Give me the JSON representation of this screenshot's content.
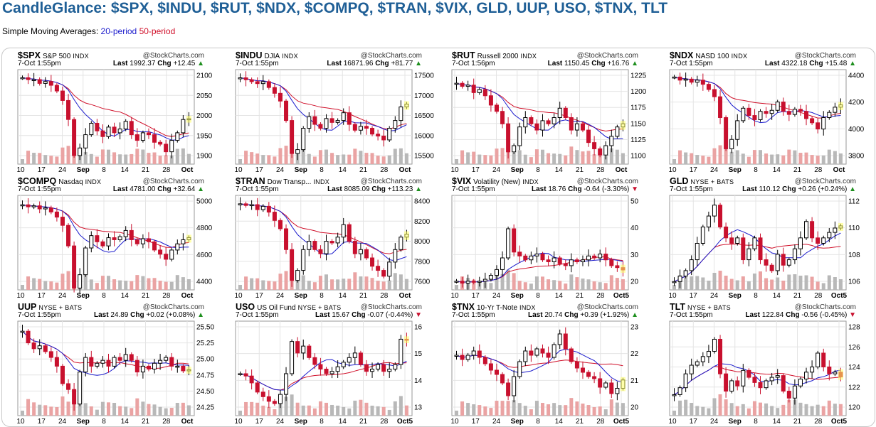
{
  "header": {
    "title": "CandleGlance: $SPX, $INDU, $RUT, $NDX, $COMPQ, $TRAN, $VIX, GLD, UUP, USO, $TNX, TLT",
    "sma_prefix": "Simple Moving Averages: ",
    "sma20_label": "20-period",
    "sma50_label": "50-period"
  },
  "colors": {
    "title": "#1f5f96",
    "up": "#000000",
    "down": "#c8102e",
    "sma20": "#1b1bcc",
    "sma50": "#d0102a",
    "vol_up": "#b8b8b8",
    "vol_down": "#eaa3a3",
    "highlight": "#ffff66"
  },
  "charts": [
    {
      "symbol": "$SPX",
      "name": "S&P 500",
      "exchange": "INDX",
      "source": "@StockCharts.com",
      "timestamp": "7-Oct 1:55pm",
      "last_label": "Last",
      "last": "1992.37",
      "chg_label": "Chg",
      "chg": "+12.45",
      "dir": "up",
      "x_ticks": [
        "10",
        "17",
        "24",
        "Sep",
        "8",
        "14",
        "21",
        "28",
        "Oct"
      ],
      "y_ticks": [
        "2100",
        "2050",
        "2000",
        "1950",
        "1900"
      ]
    },
    {
      "symbol": "$INDU",
      "name": "DJIA",
      "exchange": "INDX",
      "source": "@StockCharts.com",
      "timestamp": "7-Oct 1:55pm",
      "last_label": "Last",
      "last": "16871.96",
      "chg_label": "Chg",
      "chg": "+81.77",
      "dir": "up",
      "x_ticks": [
        "10",
        "17",
        "24",
        "Sep",
        "8",
        "14",
        "21",
        "28",
        "Oct"
      ],
      "y_ticks": [
        "17500",
        "17000",
        "16500",
        "16000",
        "15500"
      ]
    },
    {
      "symbol": "$RUT",
      "name": "Russell 2000",
      "exchange": "INDX",
      "source": "@StockCharts.com",
      "timestamp": "7-Oct 1:56pm",
      "last_label": "Last",
      "last": "1150.45",
      "chg_label": "Chg",
      "chg": "+16.76",
      "dir": "up",
      "x_ticks": [
        "10",
        "17",
        "24",
        "Sep",
        "8",
        "14",
        "21",
        "28",
        "Oct"
      ],
      "y_ticks": [
        "1225",
        "1200",
        "1175",
        "1150",
        "1125",
        "1100"
      ]
    },
    {
      "symbol": "$NDX",
      "name": "NASD 100",
      "exchange": "INDX",
      "source": "@StockCharts.com",
      "timestamp": "7-Oct 1:55pm",
      "last_label": "Last",
      "last": "4322.18",
      "chg_label": "Chg",
      "chg": "+15.48",
      "dir": "up",
      "x_ticks": [
        "10",
        "17",
        "24",
        "Sep",
        "8",
        "14",
        "21",
        "28",
        "Oct"
      ],
      "y_ticks": [
        "4400",
        "4200",
        "4000",
        "3800"
      ]
    },
    {
      "symbol": "$COMPQ",
      "name": "Nasdaq",
      "exchange": "INDX",
      "source": "@StockCharts.com",
      "timestamp": "7-Oct 1:55pm",
      "last_label": "Last",
      "last": "4781.00",
      "chg_label": "Chg",
      "chg": "+32.64",
      "dir": "up",
      "x_ticks": [
        "10",
        "17",
        "24",
        "Sep",
        "8",
        "14",
        "21",
        "28",
        "Oct"
      ],
      "y_ticks": [
        "5000",
        "4800",
        "4600",
        "4400"
      ]
    },
    {
      "symbol": "$TRAN",
      "name": "Dow Transp...",
      "exchange": "INDX",
      "source": "@StockCharts.com",
      "timestamp": "7-Oct 1:55pm",
      "last_label": "Last",
      "last": "8085.09",
      "chg_label": "Chg",
      "chg": "+113.23",
      "dir": "up",
      "x_ticks": [
        "10",
        "17",
        "24",
        "Sep",
        "8",
        "14",
        "21",
        "28",
        "Oct"
      ],
      "y_ticks": [
        "8400",
        "8200",
        "8000",
        "7800",
        "7600"
      ]
    },
    {
      "symbol": "$VIX",
      "name": "Volatility (New)",
      "exchange": "INDX",
      "source": "@StockCharts.com",
      "timestamp": "7-Oct 1:55pm",
      "last_label": "Last",
      "last": "18.76",
      "chg_label": "Chg",
      "chg": "-0.64 (-3.30%)",
      "dir": "down",
      "x_ticks": [
        "10",
        "17",
        "24",
        "Sep",
        "8",
        "14",
        "21",
        "28",
        "Oct5"
      ],
      "y_ticks": [
        "50",
        "40",
        "30",
        "20"
      ]
    },
    {
      "symbol": "GLD",
      "name": "",
      "exchange": "NYSE + BATS",
      "source": "@StockCharts.com",
      "timestamp": "7-Oct 1:55pm",
      "last_label": "Last",
      "last": "110.12",
      "chg_label": "Chg",
      "chg": "+0.26 (+0.24%)",
      "dir": "up",
      "x_ticks": [
        "10",
        "17",
        "24",
        "Sep",
        "8",
        "14",
        "21",
        "28",
        "Oct5"
      ],
      "y_ticks": [
        "112",
        "110",
        "108",
        "106"
      ]
    },
    {
      "symbol": "UUP",
      "name": "",
      "exchange": "NYSE + BATS",
      "source": "@StockCharts.com",
      "timestamp": "7-Oct 1:55pm",
      "last_label": "Last",
      "last": "24.89",
      "chg_label": "Chg",
      "chg": "+0.02 (+0.08%)",
      "dir": "up",
      "x_ticks": [
        "10",
        "17",
        "24",
        "Sep",
        "8",
        "14",
        "21",
        "28",
        "Oct"
      ],
      "y_ticks": [
        "25.50",
        "25.25",
        "25.00",
        "24.75",
        "24.50",
        "24.25"
      ]
    },
    {
      "symbol": "USO",
      "name": "US Oil Fund",
      "exchange": "NYSE + BATS",
      "source": "@StockCharts.com",
      "timestamp": "7-Oct 1:55pm",
      "last_label": "Last",
      "last": "15.67",
      "chg_label": "Chg",
      "chg": "-0.07 (-0.44%)",
      "dir": "down",
      "x_ticks": [
        "10",
        "17",
        "24",
        "Sep",
        "8",
        "14",
        "21",
        "28",
        "Oct5"
      ],
      "y_ticks": [
        "16",
        "15",
        "14",
        "13"
      ]
    },
    {
      "symbol": "$TNX",
      "name": "10-Yr T-Note",
      "exchange": "INDX",
      "source": "@StockCharts.com",
      "timestamp": "7-Oct 1:55pm",
      "last_label": "Last",
      "last": "20.74",
      "chg_label": "Chg",
      "chg": "+0.39 (+1.92%)",
      "dir": "up",
      "x_ticks": [
        "10",
        "17",
        "24",
        "Sep",
        "8",
        "14",
        "21",
        "28",
        "Oct5"
      ],
      "y_ticks": [
        "23",
        "22",
        "21",
        "20"
      ]
    },
    {
      "symbol": "TLT",
      "name": "",
      "exchange": "NYSE + BATS",
      "source": "@StockCharts.com",
      "timestamp": "7-Oct 1:55pm",
      "last_label": "Last",
      "last": "122.84",
      "chg_label": "Chg",
      "chg": "-0.56 (-0.45%)",
      "dir": "down",
      "x_ticks": [
        "10",
        "17",
        "24",
        "Sep",
        "8",
        "14",
        "21",
        "28",
        "Oct5"
      ],
      "y_ticks": [
        "128",
        "126",
        "124",
        "122",
        "120"
      ]
    }
  ],
  "chart_data": [
    {
      "type": "line",
      "title": "$SPX",
      "series": [
        {
          "name": "Last",
          "values": [
            2100,
            2095,
            2095,
            2085,
            2090,
            2080,
            2065,
            2040,
            1990,
            1895,
            1915,
            1950,
            1980,
            1960,
            1945,
            1970,
            1955,
            1965,
            1985,
            1950,
            1935,
            1955,
            1950,
            1930,
            1925,
            1905,
            1935,
            1955,
            1990,
            1992
          ]
        }
      ],
      "ylim": [
        1880,
        2110
      ]
    },
    {
      "type": "line",
      "title": "$INDU",
      "series": [
        {
          "name": "Last",
          "values": [
            17550,
            17500,
            17450,
            17400,
            17450,
            17300,
            17150,
            16950,
            16450,
            15600,
            15700,
            16250,
            16550,
            16350,
            16250,
            16500,
            16400,
            16450,
            16650,
            16350,
            16200,
            16300,
            16250,
            16100,
            16050,
            15950,
            16250,
            16450,
            16800,
            16872
          ]
        }
      ],
      "ylim": [
        15400,
        17650
      ]
    },
    {
      "type": "line",
      "title": "$RUT",
      "series": [
        {
          "name": "Last",
          "values": [
            1215,
            1210,
            1212,
            1200,
            1205,
            1195,
            1180,
            1170,
            1150,
            1105,
            1115,
            1145,
            1160,
            1150,
            1140,
            1155,
            1150,
            1160,
            1175,
            1160,
            1140,
            1150,
            1140,
            1120,
            1110,
            1100,
            1115,
            1130,
            1145,
            1150
          ]
        }
      ],
      "ylim": [
        1090,
        1230
      ]
    },
    {
      "type": "line",
      "title": "$NDX",
      "series": [
        {
          "name": "Last",
          "values": [
            4590,
            4560,
            4570,
            4540,
            4560,
            4520,
            4470,
            4400,
            4200,
            3900,
            3990,
            4170,
            4290,
            4220,
            4180,
            4260,
            4240,
            4270,
            4350,
            4260,
            4230,
            4280,
            4260,
            4190,
            4150,
            4090,
            4200,
            4250,
            4300,
            4322
          ]
        }
      ],
      "ylim": [
        3780,
        4620
      ]
    },
    {
      "type": "line",
      "title": "$COMPQ",
      "series": [
        {
          "name": "Last",
          "values": [
            5100,
            5080,
            5090,
            5060,
            5070,
            5030,
            4980,
            4900,
            4700,
            4290,
            4420,
            4680,
            4800,
            4740,
            4700,
            4780,
            4760,
            4790,
            4850,
            4760,
            4720,
            4770,
            4740,
            4660,
            4620,
            4570,
            4660,
            4720,
            4760,
            4781
          ]
        }
      ],
      "ylim": [
        4300,
        5150
      ]
    },
    {
      "type": "line",
      "title": "$TRAN",
      "series": [
        {
          "name": "Last",
          "values": [
            8450,
            8430,
            8440,
            8380,
            8420,
            8350,
            8250,
            8150,
            7900,
            7530,
            7650,
            7900,
            8000,
            7900,
            7850,
            8000,
            7980,
            8050,
            8200,
            8000,
            7850,
            7900,
            7800,
            7700,
            7650,
            7580,
            7750,
            7900,
            8050,
            8085
          ]
        }
      ],
      "ylim": [
        7450,
        8500
      ]
    },
    {
      "type": "line",
      "title": "$VIX",
      "series": [
        {
          "name": "Last",
          "values": [
            13,
            12,
            13,
            12.5,
            13,
            14,
            16,
            19,
            25,
            40,
            28,
            26,
            24,
            26,
            27,
            24,
            23,
            25,
            22,
            21,
            24,
            23,
            24,
            26,
            25,
            27,
            24,
            21,
            20,
            18.8
          ]
        }
      ],
      "ylim": [
        10,
        55
      ]
    },
    {
      "type": "line",
      "title": "GLD",
      "series": [
        {
          "name": "Last",
          "values": [
            105,
            105.5,
            106,
            107,
            108.5,
            110,
            111,
            112,
            110,
            109,
            108.5,
            109,
            107,
            108,
            109,
            107,
            106.5,
            106,
            107.5,
            106.5,
            107,
            108,
            109,
            110.5,
            109,
            108.5,
            109,
            109.5,
            109.9,
            110.1
          ]
        }
      ],
      "ylim": [
        104.5,
        112.5
      ]
    },
    {
      "type": "line",
      "title": "UUP",
      "series": [
        {
          "name": "Last",
          "values": [
            25.55,
            25.35,
            25.25,
            25.3,
            25.2,
            25.1,
            24.95,
            24.65,
            24.55,
            24.3,
            24.85,
            25.1,
            24.95,
            25.0,
            25.05,
            24.95,
            25.1,
            25.05,
            25.15,
            25.05,
            24.85,
            24.95,
            24.9,
            25.0,
            25.05,
            25.1,
            24.95,
            24.95,
            24.87,
            24.89
          ]
        }
      ],
      "ylim": [
        24.15,
        25.65
      ]
    },
    {
      "type": "line",
      "title": "USO",
      "series": [
        {
          "name": "Last",
          "values": [
            14.2,
            14.1,
            13.8,
            13.4,
            13.2,
            13,
            12.9,
            13.3,
            14.2,
            15.6,
            15.1,
            15.4,
            14.9,
            14.6,
            14.4,
            14.2,
            14.3,
            14.5,
            14.7,
            14.9,
            15.1,
            14.6,
            14.3,
            14.4,
            14.6,
            14.3,
            14.4,
            14.6,
            15.7,
            15.67
          ]
        }
      ],
      "ylim": [
        12.5,
        16.3
      ]
    },
    {
      "type": "line",
      "title": "$TNX",
      "series": [
        {
          "name": "Last",
          "values": [
            21.9,
            21.7,
            21.9,
            22.1,
            21.8,
            21.5,
            21.2,
            21.0,
            20.6,
            20.0,
            20.9,
            21.6,
            22.1,
            21.9,
            22.2,
            22.0,
            21.8,
            22.4,
            22.9,
            22.2,
            21.6,
            21.3,
            21.1,
            20.9,
            20.8,
            20.4,
            20.6,
            20.1,
            20.35,
            20.74
          ]
        }
      ],
      "ylim": [
        19.2,
        23.3
      ]
    },
    {
      "type": "line",
      "title": "TLT",
      "series": [
        {
          "name": "Last",
          "values": [
            120.8,
            121.6,
            123.2,
            124.2,
            124.6,
            125.2,
            125.8,
            127.2,
            123.2,
            121.2,
            122.4,
            121.8,
            123.6,
            122.8,
            122.2,
            121.6,
            122.4,
            122.8,
            123.0,
            121.2,
            120.4,
            121.8,
            122.6,
            123.4,
            124.0,
            125.6,
            124.0,
            123.2,
            123.4,
            122.84
          ]
        }
      ],
      "ylim": [
        118.7,
        128.8
      ]
    }
  ]
}
